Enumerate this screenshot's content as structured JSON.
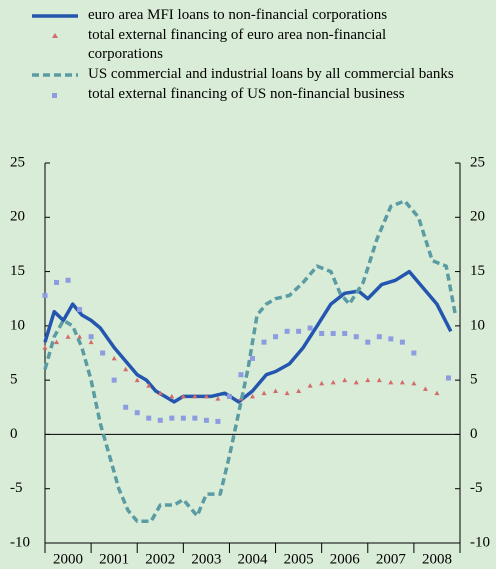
{
  "chart_data": {
    "type": "line",
    "xlim": [
      2000,
      2009
    ],
    "xticks": [
      2000,
      2001,
      2002,
      2003,
      2004,
      2005,
      2006,
      2007,
      2008,
      2009
    ],
    "xtick_labels": [
      {
        "value": 2000.5,
        "label": "2000"
      },
      {
        "value": 2001.5,
        "label": "2001"
      },
      {
        "value": 2002.5,
        "label": "2002"
      },
      {
        "value": 2003.5,
        "label": "2003"
      },
      {
        "value": 2004.5,
        "label": "2004"
      },
      {
        "value": 2005.5,
        "label": "2005"
      },
      {
        "value": 2006.5,
        "label": "2006"
      },
      {
        "value": 2007.5,
        "label": "2007"
      },
      {
        "value": 2008.5,
        "label": "2008"
      }
    ],
    "ylim": [
      -10,
      25
    ],
    "yticks": [
      -10,
      -5,
      0,
      5,
      10,
      15,
      20,
      25
    ],
    "y2lim": [
      -10,
      25
    ],
    "y2ticks": [
      -10,
      -5,
      0,
      5,
      10,
      15,
      20,
      25
    ],
    "series": [
      {
        "name": "euro area MFI loans to non-financial corporations",
        "type": "line",
        "dash": false,
        "color": "#2456b0",
        "x": [
          2000.0,
          2000.2,
          2000.4,
          2000.6,
          2000.8,
          2001.0,
          2001.2,
          2001.5,
          2001.8,
          2002.0,
          2002.2,
          2002.4,
          2002.6,
          2002.8,
          2003.0,
          2003.3,
          2003.6,
          2003.9,
          2004.2,
          2004.5,
          2004.8,
          2005.0,
          2005.3,
          2005.6,
          2005.9,
          2006.2,
          2006.5,
          2006.8,
          2007.0,
          2007.3,
          2007.6,
          2007.9,
          2008.2,
          2008.5,
          2008.8
        ],
        "values": [
          8.5,
          11.3,
          10.5,
          12,
          11,
          10.5,
          9.8,
          8,
          6.5,
          5.5,
          5,
          4,
          3.5,
          3,
          3.5,
          3.5,
          3.5,
          3.8,
          3,
          4,
          5.5,
          5.8,
          6.5,
          8,
          10,
          12,
          13,
          13.2,
          12.5,
          13.8,
          14.2,
          15,
          13.5,
          12,
          9.5
        ]
      },
      {
        "name": "total external financing of euro area non-financial corporations",
        "type": "scatter",
        "marker": "triangle",
        "color": "#d46a6a",
        "x": [
          2000.0,
          2000.25,
          2000.5,
          2000.75,
          2001.0,
          2001.25,
          2001.5,
          2001.75,
          2002.0,
          2002.25,
          2002.5,
          2002.75,
          2003.0,
          2003.25,
          2003.5,
          2003.75,
          2004.0,
          2004.25,
          2004.5,
          2004.75,
          2005.0,
          2005.25,
          2005.5,
          2005.75,
          2006.0,
          2006.25,
          2006.5,
          2006.75,
          2007.0,
          2007.25,
          2007.5,
          2007.75,
          2008.0,
          2008.25,
          2008.5
        ],
        "values": [
          8,
          8.5,
          9,
          9,
          8.5,
          7.5,
          7,
          6,
          5,
          4.5,
          3.8,
          3.5,
          3.5,
          3.5,
          3.5,
          3.3,
          3.5,
          3.3,
          3.5,
          3.8,
          4,
          3.8,
          4,
          4.5,
          4.7,
          4.8,
          5,
          4.8,
          5,
          5,
          4.8,
          4.8,
          4.7,
          4.2,
          3.8
        ]
      },
      {
        "name": "US commercial and industrial loans by all commercial banks",
        "type": "line",
        "dash": true,
        "color": "#5b9ba3",
        "x": [
          2000.0,
          2000.2,
          2000.4,
          2000.6,
          2000.8,
          2001.0,
          2001.2,
          2001.4,
          2001.6,
          2001.8,
          2002.0,
          2002.3,
          2002.5,
          2002.8,
          2003.0,
          2003.3,
          2003.5,
          2003.8,
          2004.0,
          2004.2,
          2004.4,
          2004.6,
          2004.8,
          2005.0,
          2005.3,
          2005.6,
          2005.9,
          2006.2,
          2006.4,
          2006.6,
          2006.9,
          2007.2,
          2007.5,
          2007.8,
          2008.1,
          2008.4,
          2008.7,
          2008.9
        ],
        "values": [
          6,
          9,
          10.5,
          10,
          8,
          5,
          1,
          -2,
          -5,
          -7,
          -8,
          -8,
          -6.5,
          -6.5,
          -6,
          -7.5,
          -5.5,
          -5.5,
          -2,
          2,
          6,
          11,
          12,
          12.5,
          12.8,
          14,
          15.5,
          15,
          13,
          12,
          14,
          18,
          21,
          21.5,
          20,
          16,
          15.5,
          11
        ]
      },
      {
        "name": "total external financing of US non-financial business",
        "type": "scatter",
        "marker": "square",
        "color": "#8d9be0",
        "x": [
          2000.0,
          2000.25,
          2000.5,
          2000.75,
          2001.0,
          2001.25,
          2001.5,
          2001.75,
          2002.0,
          2002.25,
          2002.5,
          2002.75,
          2003.0,
          2003.25,
          2003.5,
          2003.75,
          2004.0,
          2004.25,
          2004.5,
          2004.75,
          2005.0,
          2005.25,
          2005.5,
          2005.75,
          2006.0,
          2006.25,
          2006.5,
          2006.75,
          2007.0,
          2007.25,
          2007.5,
          2007.75,
          2008.0,
          2008.75
        ],
        "values": [
          12.8,
          14,
          14.2,
          11.5,
          9,
          7.5,
          5,
          2.5,
          2,
          1.5,
          1.3,
          1.5,
          1.5,
          1.5,
          1.3,
          1.2,
          3.5,
          5.5,
          7,
          8.5,
          9,
          9.5,
          9.5,
          9.8,
          9.3,
          9.3,
          9.3,
          9,
          8.5,
          9,
          8.8,
          8.5,
          7.5,
          5.2
        ]
      }
    ]
  }
}
